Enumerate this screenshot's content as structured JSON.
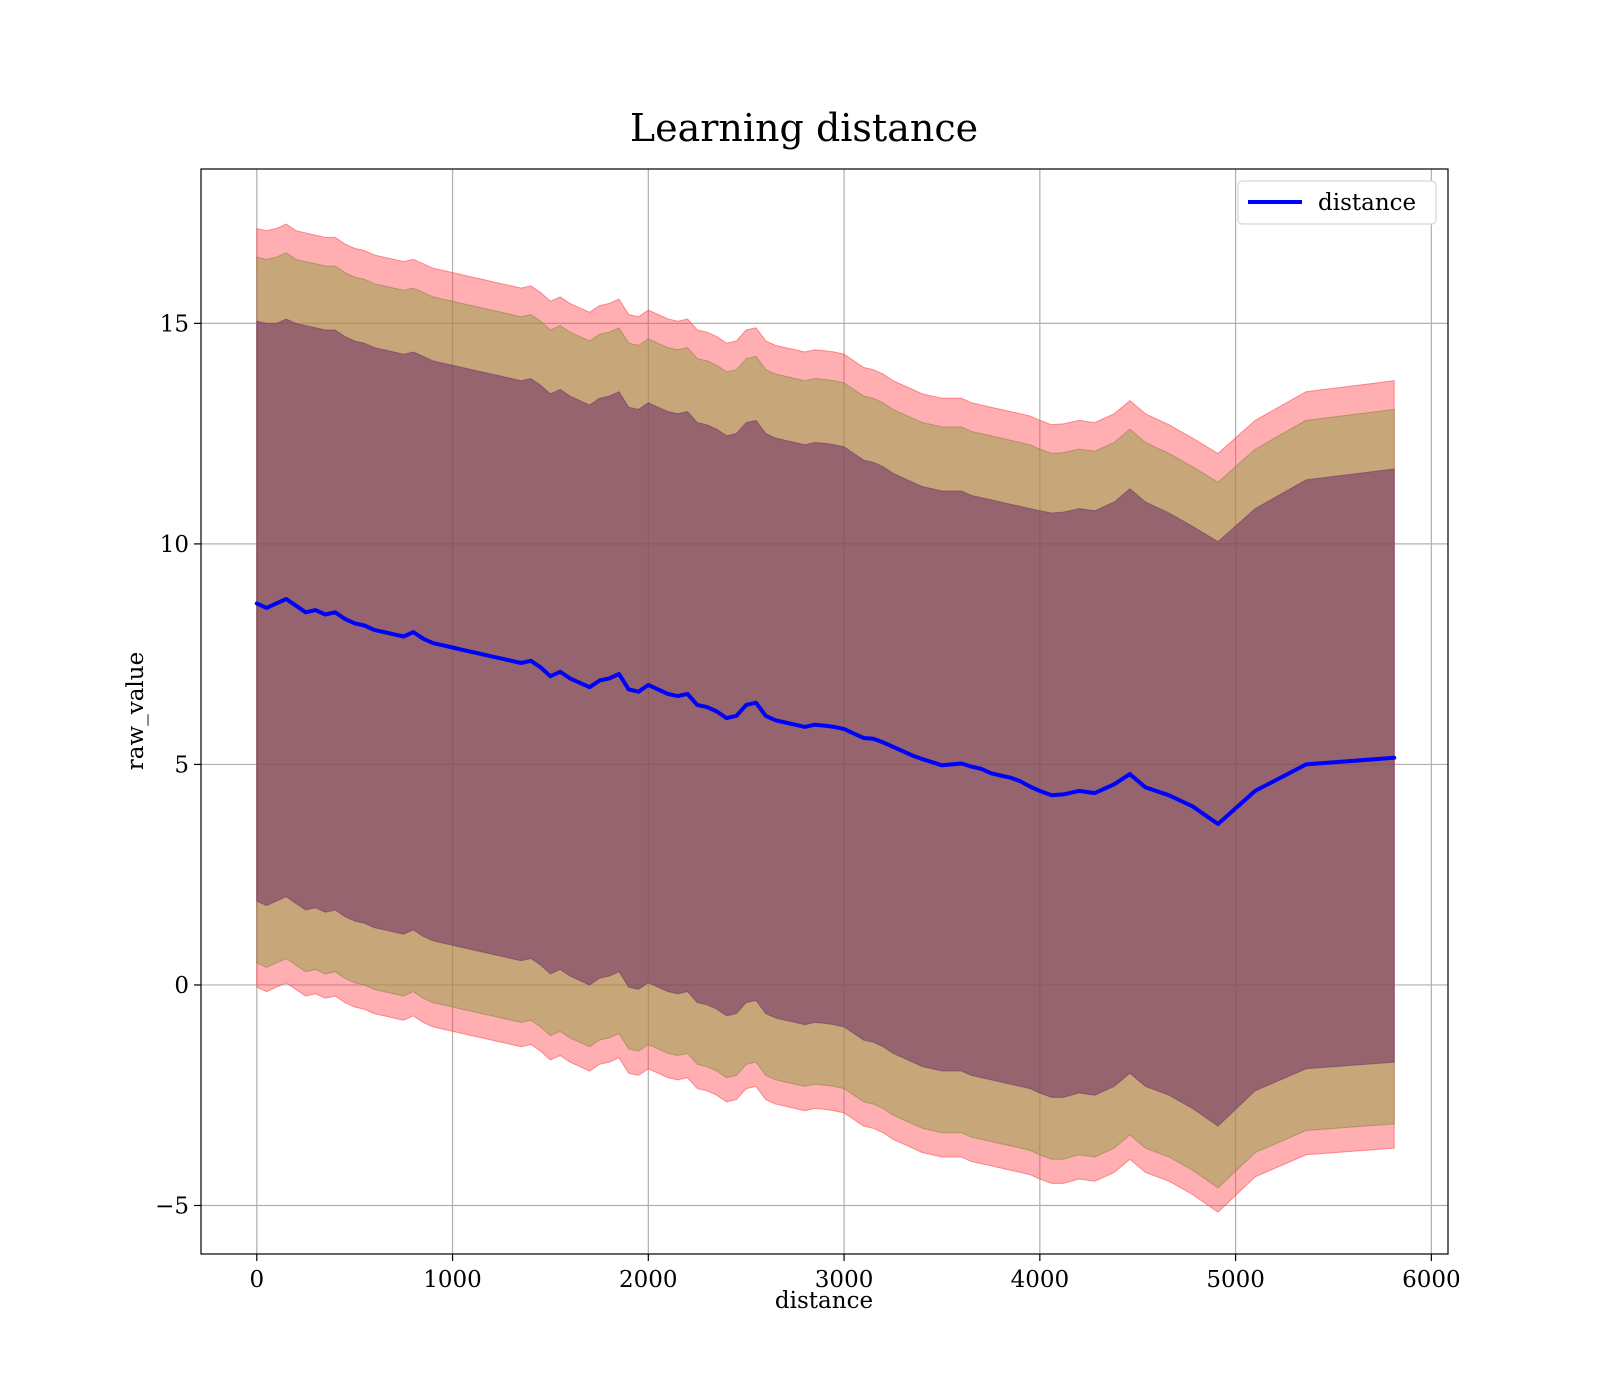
{
  "chart_data": {
    "type": "line",
    "title": "Learning distance",
    "xlabel": "distance",
    "ylabel": "raw_value",
    "xlim": [
      -285,
      6085
    ],
    "ylim": [
      -6.1,
      18.5
    ],
    "x_ticks": [
      0,
      1000,
      2000,
      3000,
      4000,
      5000,
      6000
    ],
    "x_tick_labels": [
      "0",
      "1000",
      "2000",
      "3000",
      "4000",
      "5000",
      "6000"
    ],
    "y_ticks": [
      -5,
      0,
      5,
      10,
      15
    ],
    "y_tick_labels": [
      "−5",
      "0",
      "5",
      "10",
      "15"
    ],
    "grid": true,
    "legend": {
      "position": "top-right",
      "entries": [
        "distance"
      ]
    },
    "colors": {
      "line": "#0000ff",
      "band_outer": "#ff4d55",
      "band_middle": "#8fa040",
      "band_inner": "#6b2d66",
      "grid": "#b0b0b0"
    },
    "series": [
      {
        "name": "distance",
        "x": [
          0,
          50,
          100,
          150,
          200,
          250,
          300,
          350,
          400,
          450,
          500,
          550,
          600,
          650,
          700,
          750,
          800,
          850,
          900,
          950,
          1000,
          1050,
          1100,
          1150,
          1200,
          1250,
          1300,
          1350,
          1400,
          1450,
          1500,
          1550,
          1600,
          1650,
          1700,
          1750,
          1800,
          1850,
          1900,
          1950,
          2000,
          2050,
          2100,
          2150,
          2200,
          2250,
          2300,
          2350,
          2400,
          2450,
          2500,
          2550,
          2600,
          2650,
          2700,
          2750,
          2800,
          2850,
          2900,
          2950,
          3000,
          3050,
          3100,
          3150,
          3200,
          3250,
          3300,
          3350,
          3400,
          3450,
          3500,
          3550,
          3600,
          3650,
          3700,
          3750,
          3800,
          3850,
          3900,
          3950,
          4000,
          4060,
          4120,
          4200,
          4280,
          4380,
          4460,
          4540,
          4660,
          4780,
          4910,
          5100,
          5360,
          5810
        ],
        "y": [
          8.65,
          8.55,
          8.65,
          8.75,
          8.6,
          8.45,
          8.5,
          8.4,
          8.45,
          8.3,
          8.2,
          8.15,
          8.05,
          8.0,
          7.95,
          7.9,
          8.0,
          7.85,
          7.75,
          7.7,
          7.65,
          7.6,
          7.55,
          7.5,
          7.45,
          7.4,
          7.35,
          7.3,
          7.35,
          7.2,
          7.0,
          7.1,
          6.95,
          6.85,
          6.75,
          6.9,
          6.95,
          7.05,
          6.7,
          6.65,
          6.8,
          6.7,
          6.6,
          6.55,
          6.6,
          6.35,
          6.3,
          6.2,
          6.05,
          6.1,
          6.35,
          6.4,
          6.1,
          6.0,
          5.95,
          5.9,
          5.85,
          5.9,
          5.88,
          5.85,
          5.8,
          5.7,
          5.6,
          5.58,
          5.5,
          5.4,
          5.3,
          5.2,
          5.12,
          5.05,
          4.98,
          5.0,
          5.02,
          4.95,
          4.9,
          4.8,
          4.75,
          4.7,
          4.62,
          4.5,
          4.4,
          4.3,
          4.32,
          4.4,
          4.35,
          4.55,
          4.78,
          4.48,
          4.3,
          4.05,
          3.65,
          4.4,
          5.0,
          5.15
        ],
        "band_inner": {
          "upper": [
            15.05,
            15.0,
            15.0,
            15.1,
            15.0,
            14.95,
            14.9,
            14.85,
            14.85,
            14.7,
            14.6,
            14.55,
            14.45,
            14.4,
            14.35,
            14.3,
            14.35,
            14.25,
            14.15,
            14.1,
            14.05,
            14.0,
            13.95,
            13.9,
            13.85,
            13.8,
            13.75,
            13.7,
            13.75,
            13.6,
            13.4,
            13.5,
            13.35,
            13.25,
            13.15,
            13.3,
            13.35,
            13.45,
            13.1,
            13.05,
            13.2,
            13.1,
            13.0,
            12.95,
            13.0,
            12.75,
            12.7,
            12.6,
            12.45,
            12.5,
            12.75,
            12.8,
            12.5,
            12.4,
            12.35,
            12.3,
            12.25,
            12.3,
            12.28,
            12.25,
            12.2,
            12.05,
            11.9,
            11.85,
            11.75,
            11.6,
            11.5,
            11.4,
            11.3,
            11.25,
            11.2,
            11.2,
            11.2,
            11.1,
            11.05,
            11.0,
            10.95,
            10.9,
            10.85,
            10.8,
            10.75,
            10.7,
            10.72,
            10.8,
            10.75,
            10.95,
            11.25,
            10.95,
            10.7,
            10.4,
            10.05,
            10.8,
            11.45,
            11.7
          ],
          "lower": [
            1.9,
            1.8,
            1.9,
            2.0,
            1.85,
            1.7,
            1.75,
            1.65,
            1.7,
            1.55,
            1.45,
            1.4,
            1.3,
            1.25,
            1.2,
            1.15,
            1.25,
            1.1,
            1.0,
            0.95,
            0.9,
            0.85,
            0.8,
            0.75,
            0.7,
            0.65,
            0.6,
            0.55,
            0.6,
            0.45,
            0.25,
            0.35,
            0.2,
            0.1,
            0.0,
            0.15,
            0.2,
            0.3,
            -0.05,
            -0.1,
            0.05,
            -0.05,
            -0.15,
            -0.2,
            -0.15,
            -0.4,
            -0.45,
            -0.55,
            -0.7,
            -0.65,
            -0.4,
            -0.35,
            -0.65,
            -0.75,
            -0.8,
            -0.85,
            -0.9,
            -0.85,
            -0.87,
            -0.9,
            -0.95,
            -1.1,
            -1.25,
            -1.3,
            -1.4,
            -1.55,
            -1.65,
            -1.75,
            -1.85,
            -1.9,
            -1.95,
            -1.95,
            -1.95,
            -2.05,
            -2.1,
            -2.15,
            -2.2,
            -2.25,
            -2.3,
            -2.35,
            -2.45,
            -2.55,
            -2.55,
            -2.45,
            -2.5,
            -2.3,
            -2.0,
            -2.3,
            -2.5,
            -2.8,
            -3.2,
            -2.4,
            -1.9,
            -1.75
          ]
        },
        "band_middle": {
          "upper": [
            16.5,
            16.45,
            16.5,
            16.6,
            16.45,
            16.4,
            16.35,
            16.3,
            16.3,
            16.15,
            16.05,
            16.0,
            15.9,
            15.85,
            15.8,
            15.75,
            15.8,
            15.7,
            15.6,
            15.55,
            15.5,
            15.45,
            15.4,
            15.35,
            15.3,
            15.25,
            15.2,
            15.15,
            15.2,
            15.05,
            14.85,
            14.95,
            14.8,
            14.7,
            14.6,
            14.75,
            14.8,
            14.9,
            14.55,
            14.5,
            14.65,
            14.55,
            14.45,
            14.4,
            14.45,
            14.2,
            14.15,
            14.05,
            13.9,
            13.95,
            14.2,
            14.25,
            13.95,
            13.85,
            13.8,
            13.75,
            13.7,
            13.75,
            13.73,
            13.7,
            13.65,
            13.5,
            13.35,
            13.3,
            13.2,
            13.05,
            12.95,
            12.85,
            12.75,
            12.7,
            12.65,
            12.65,
            12.65,
            12.55,
            12.5,
            12.45,
            12.4,
            12.35,
            12.3,
            12.25,
            12.15,
            12.05,
            12.07,
            12.15,
            12.1,
            12.3,
            12.6,
            12.3,
            12.05,
            11.75,
            11.4,
            12.15,
            12.8,
            13.05
          ],
          "lower": [
            0.5,
            0.4,
            0.5,
            0.6,
            0.45,
            0.3,
            0.35,
            0.25,
            0.3,
            0.15,
            0.05,
            0.0,
            -0.1,
            -0.15,
            -0.2,
            -0.25,
            -0.15,
            -0.3,
            -0.4,
            -0.45,
            -0.5,
            -0.55,
            -0.6,
            -0.65,
            -0.7,
            -0.75,
            -0.8,
            -0.85,
            -0.8,
            -0.95,
            -1.15,
            -1.05,
            -1.2,
            -1.3,
            -1.4,
            -1.25,
            -1.2,
            -1.1,
            -1.45,
            -1.5,
            -1.35,
            -1.45,
            -1.55,
            -1.6,
            -1.55,
            -1.8,
            -1.85,
            -1.95,
            -2.1,
            -2.05,
            -1.8,
            -1.75,
            -2.05,
            -2.15,
            -2.2,
            -2.25,
            -2.3,
            -2.25,
            -2.27,
            -2.3,
            -2.35,
            -2.5,
            -2.65,
            -2.7,
            -2.8,
            -2.95,
            -3.05,
            -3.15,
            -3.25,
            -3.3,
            -3.35,
            -3.35,
            -3.35,
            -3.45,
            -3.5,
            -3.55,
            -3.6,
            -3.65,
            -3.7,
            -3.75,
            -3.85,
            -3.95,
            -3.95,
            -3.85,
            -3.9,
            -3.7,
            -3.4,
            -3.7,
            -3.9,
            -4.2,
            -4.6,
            -3.8,
            -3.3,
            -3.15
          ]
        },
        "band_outer": {
          "upper": [
            17.15,
            17.1,
            17.15,
            17.25,
            17.1,
            17.05,
            17.0,
            16.95,
            16.95,
            16.8,
            16.7,
            16.65,
            16.55,
            16.5,
            16.45,
            16.4,
            16.45,
            16.35,
            16.25,
            16.2,
            16.15,
            16.1,
            16.05,
            16.0,
            15.95,
            15.9,
            15.85,
            15.8,
            15.85,
            15.7,
            15.5,
            15.6,
            15.45,
            15.35,
            15.25,
            15.4,
            15.45,
            15.55,
            15.2,
            15.15,
            15.3,
            15.2,
            15.1,
            15.05,
            15.1,
            14.85,
            14.8,
            14.7,
            14.55,
            14.6,
            14.85,
            14.9,
            14.6,
            14.5,
            14.45,
            14.4,
            14.35,
            14.4,
            14.38,
            14.35,
            14.3,
            14.15,
            14.0,
            13.95,
            13.85,
            13.7,
            13.6,
            13.5,
            13.4,
            13.35,
            13.3,
            13.3,
            13.3,
            13.2,
            13.15,
            13.1,
            13.05,
            13.0,
            12.95,
            12.9,
            12.8,
            12.7,
            12.72,
            12.8,
            12.75,
            12.95,
            13.25,
            12.95,
            12.7,
            12.4,
            12.05,
            12.8,
            13.45,
            13.7
          ],
          "lower": [
            -0.05,
            -0.15,
            -0.05,
            0.05,
            -0.1,
            -0.25,
            -0.2,
            -0.3,
            -0.25,
            -0.4,
            -0.5,
            -0.55,
            -0.65,
            -0.7,
            -0.75,
            -0.8,
            -0.7,
            -0.85,
            -0.95,
            -1.0,
            -1.05,
            -1.1,
            -1.15,
            -1.2,
            -1.25,
            -1.3,
            -1.35,
            -1.4,
            -1.35,
            -1.5,
            -1.7,
            -1.6,
            -1.75,
            -1.85,
            -1.95,
            -1.8,
            -1.75,
            -1.65,
            -2.0,
            -2.05,
            -1.9,
            -2.0,
            -2.1,
            -2.15,
            -2.1,
            -2.35,
            -2.4,
            -2.5,
            -2.65,
            -2.6,
            -2.35,
            -2.3,
            -2.6,
            -2.7,
            -2.75,
            -2.8,
            -2.85,
            -2.8,
            -2.82,
            -2.85,
            -2.9,
            -3.05,
            -3.2,
            -3.25,
            -3.35,
            -3.5,
            -3.6,
            -3.7,
            -3.8,
            -3.85,
            -3.9,
            -3.9,
            -3.9,
            -4.0,
            -4.05,
            -4.1,
            -4.15,
            -4.2,
            -4.25,
            -4.3,
            -4.4,
            -4.5,
            -4.5,
            -4.4,
            -4.45,
            -4.25,
            -3.95,
            -4.25,
            -4.45,
            -4.75,
            -5.15,
            -4.35,
            -3.85,
            -3.7
          ]
        }
      }
    ]
  }
}
